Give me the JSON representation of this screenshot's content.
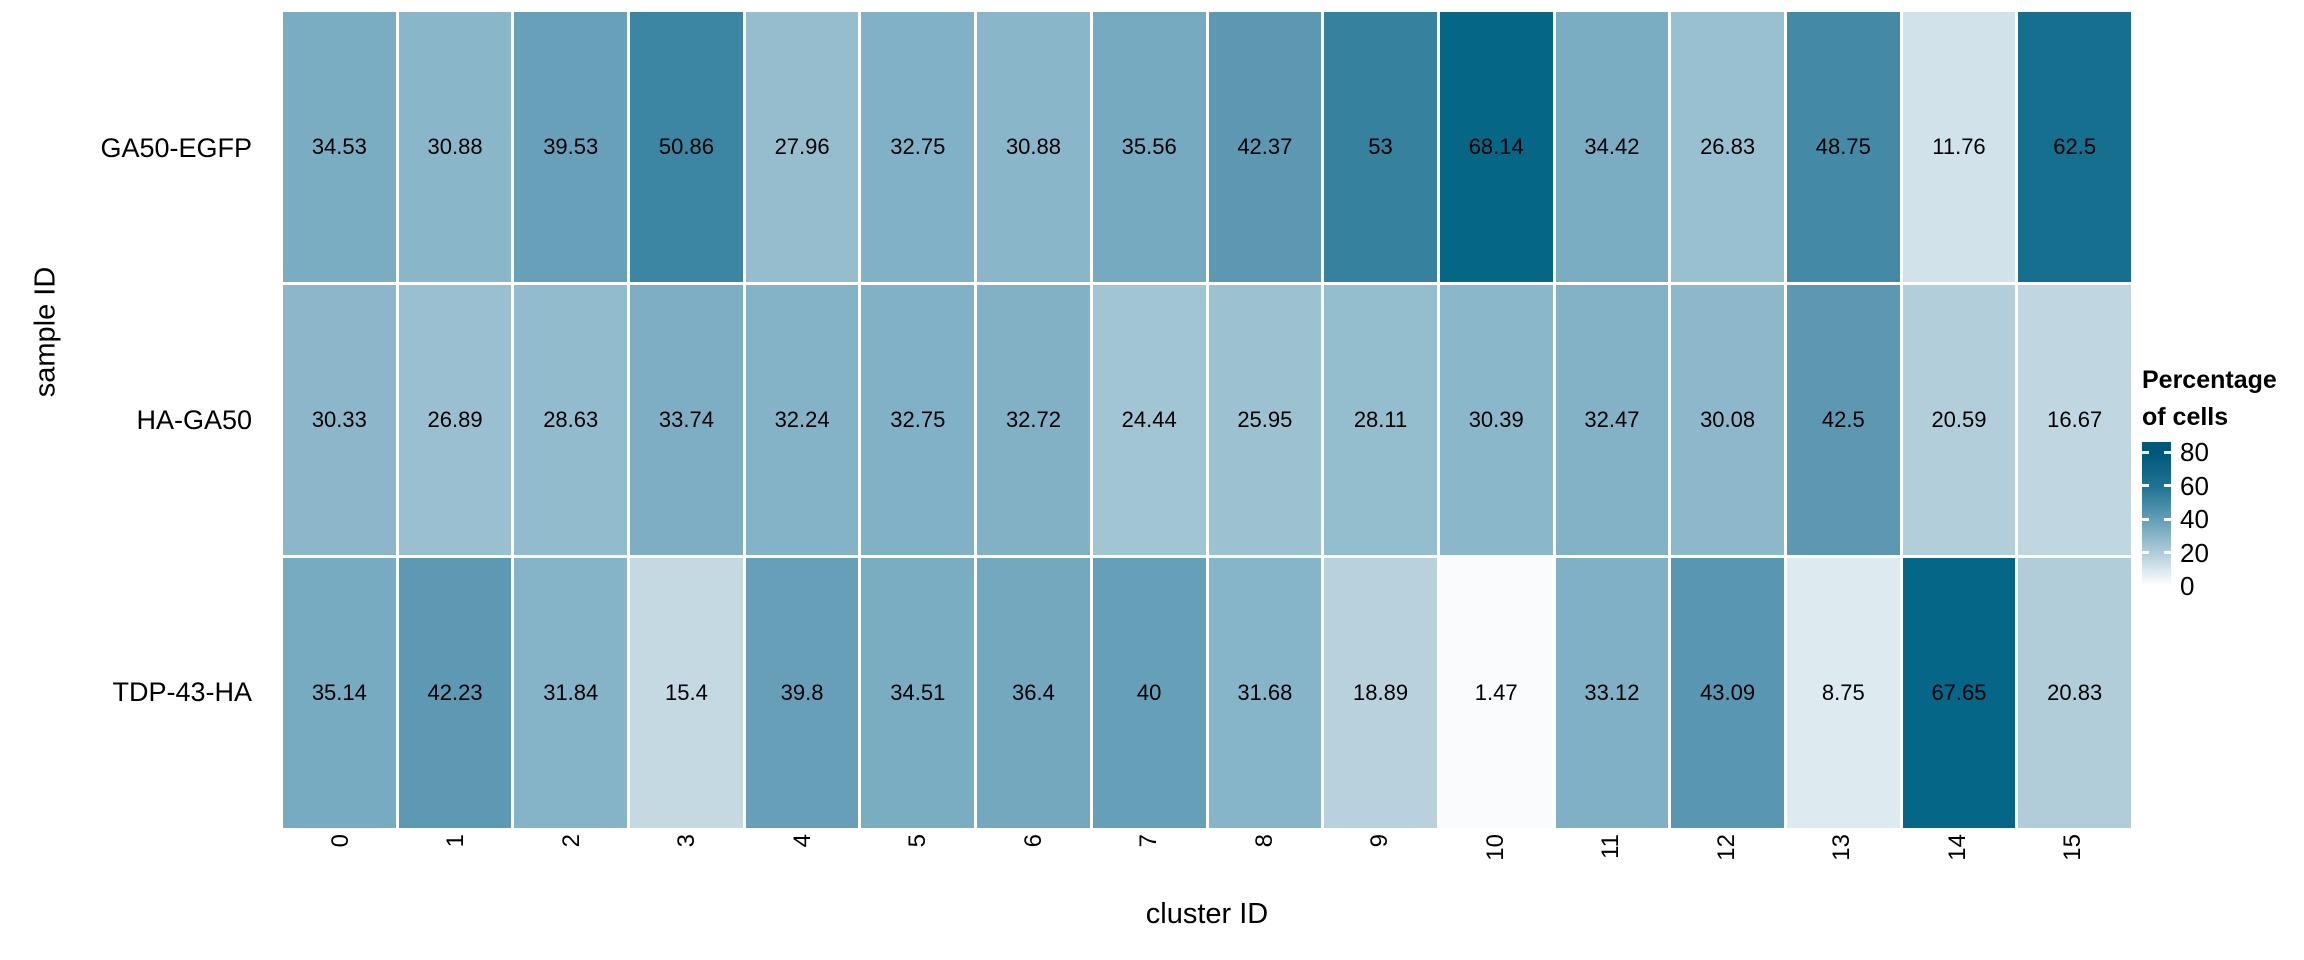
{
  "figure": {
    "background": "#ffffff",
    "text_color": "#000000"
  },
  "chart_data": {
    "type": "heatmap",
    "title": "",
    "xlabel": "cluster ID",
    "ylabel": "sample ID",
    "x_categories": [
      "0",
      "1",
      "2",
      "3",
      "4",
      "5",
      "6",
      "7",
      "8",
      "9",
      "10",
      "11",
      "12",
      "13",
      "14",
      "15"
    ],
    "y_categories": [
      "GA50-EGFP",
      "HA-GA50",
      "TDP-43-HA"
    ],
    "values": [
      [
        "34.53",
        "30.88",
        "39.53",
        "50.86",
        "27.96",
        "32.75",
        "30.88",
        "35.56",
        "42.37",
        "53",
        "68.14",
        "34.42",
        "26.83",
        "48.75",
        "11.76",
        "62.5"
      ],
      [
        "30.33",
        "26.89",
        "28.63",
        "33.74",
        "32.24",
        "32.75",
        "32.72",
        "24.44",
        "25.95",
        "28.11",
        "30.39",
        "32.47",
        "30.08",
        "42.5",
        "20.59",
        "16.67"
      ],
      [
        "35.14",
        "42.23",
        "31.84",
        "15.4",
        "39.8",
        "34.51",
        "36.4",
        "40",
        "31.68",
        "18.89",
        "1.47",
        "33.12",
        "43.09",
        "8.75",
        "67.65",
        "20.83"
      ]
    ],
    "scale": {
      "min": 0,
      "max": 80
    },
    "grid": "white gaps between tiles",
    "legend": {
      "position": "right",
      "title_lines": [
        "Percentage",
        "of cells"
      ],
      "ticks": [
        80,
        60,
        40,
        20,
        0
      ]
    },
    "colormap": [
      [
        0,
        "#ffffff"
      ],
      [
        5,
        "#eaf1f6"
      ],
      [
        10,
        "#d9e7ee"
      ],
      [
        15,
        "#c6dae4"
      ],
      [
        20,
        "#b4cfdb"
      ],
      [
        25,
        "#a0c4d3"
      ],
      [
        30,
        "#8db8cb"
      ],
      [
        35,
        "#78abc1"
      ],
      [
        40,
        "#669fb8"
      ],
      [
        45,
        "#5191ac"
      ],
      [
        50,
        "#3f88a5"
      ],
      [
        55,
        "#2f7d9a"
      ],
      [
        60,
        "#1f7392"
      ],
      [
        65,
        "#0d6a8a"
      ],
      [
        70,
        "#006384"
      ],
      [
        80,
        "#00577a"
      ]
    ]
  }
}
